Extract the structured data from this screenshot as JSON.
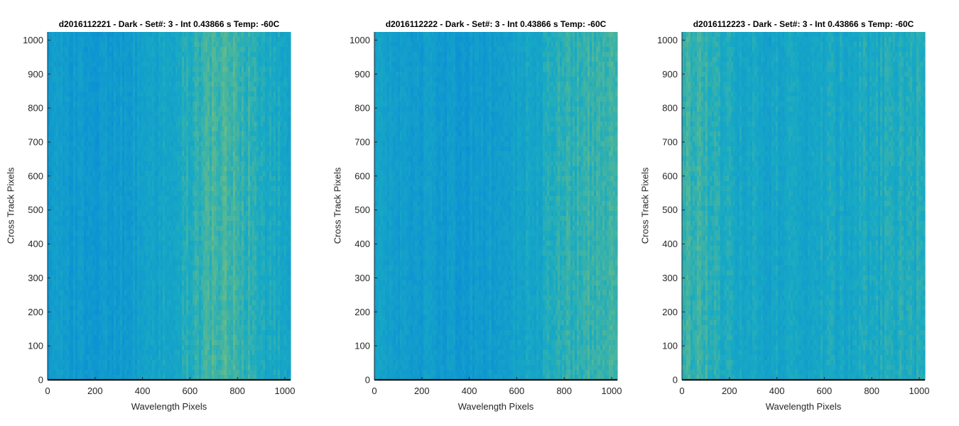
{
  "colors": {
    "low": "#0a8ad8",
    "mid": "#18aac4",
    "high": "#8cc46a",
    "axis": "#262626"
  },
  "chart_data": [
    {
      "type": "heatmap",
      "title": "d2016112221 - Dark - Set#: 3 - Int 0.43866 s Temp: -60C",
      "xlabel": "Wavelength Pixels",
      "ylabel": "Cross Track Pixels",
      "xlim": [
        0,
        1024
      ],
      "ylim": [
        0,
        1024
      ],
      "xticks": [
        0,
        200,
        400,
        600,
        800,
        1000
      ],
      "yticks": [
        0,
        100,
        200,
        300,
        400,
        500,
        600,
        700,
        800,
        900,
        1000
      ],
      "grid": false,
      "column_profile": [
        0.3,
        0.25,
        0.22,
        0.24,
        0.28,
        0.33,
        0.42,
        0.55,
        0.66,
        0.7,
        0.58,
        0.48,
        0.44
      ]
    },
    {
      "type": "heatmap",
      "title": "d2016112222 - Dark - Set#: 3 - Int 0.43866 s Temp: -60C",
      "xlabel": "Wavelength Pixels",
      "ylabel": "Cross Track Pixels",
      "xlim": [
        0,
        1024
      ],
      "ylim": [
        0,
        1024
      ],
      "xticks": [
        0,
        200,
        400,
        600,
        800,
        1000
      ],
      "yticks": [
        0,
        100,
        200,
        300,
        400,
        500,
        600,
        700,
        800,
        900,
        1000
      ],
      "grid": false,
      "column_profile": [
        0.38,
        0.34,
        0.3,
        0.26,
        0.24,
        0.26,
        0.3,
        0.36,
        0.44,
        0.54,
        0.62,
        0.66,
        0.68
      ]
    },
    {
      "type": "heatmap",
      "title": "d2016112223 - Dark - Set#: 3 - Int 0.43866 s Temp: -60C",
      "xlabel": "Wavelength Pixels",
      "ylabel": "Cross Track Pixels",
      "xlim": [
        0,
        1024
      ],
      "ylim": [
        0,
        1024
      ],
      "xticks": [
        0,
        200,
        400,
        600,
        800,
        1000
      ],
      "yticks": [
        0,
        100,
        200,
        300,
        400,
        500,
        600,
        700,
        800,
        900,
        1000
      ],
      "grid": false,
      "column_profile": [
        0.66,
        0.6,
        0.52,
        0.46,
        0.42,
        0.4,
        0.42,
        0.44,
        0.46,
        0.48,
        0.5,
        0.52,
        0.54
      ]
    }
  ]
}
